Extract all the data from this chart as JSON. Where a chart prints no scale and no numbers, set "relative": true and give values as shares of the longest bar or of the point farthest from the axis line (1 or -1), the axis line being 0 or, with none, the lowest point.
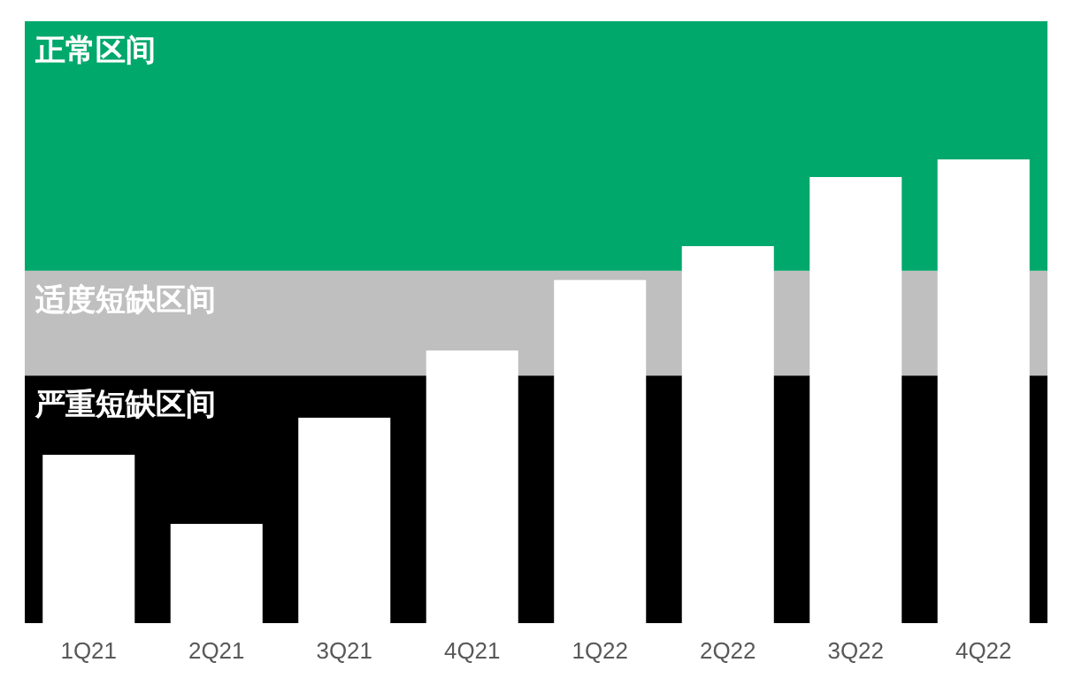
{
  "chart_data": {
    "type": "bar",
    "relative": true,
    "categories": [
      "1Q21",
      "2Q21",
      "3Q21",
      "4Q21",
      "1Q22",
      "2Q22",
      "3Q22",
      "4Q22"
    ],
    "values": [
      0.363,
      0.214,
      0.443,
      0.588,
      0.74,
      0.813,
      0.962,
      1
    ],
    "color": "#ffffff",
    "bands": [
      {
        "axis": "y",
        "from": 0,
        "to": 0.534,
        "label": "严重短缺区间",
        "color": "#000000"
      },
      {
        "axis": "y",
        "from": 0.534,
        "to": 0.76,
        "label": "适度短缺区间",
        "color": "#bfbfbf"
      },
      {
        "axis": "y",
        "from": 0.76,
        "to": 1.298,
        "label": "正常区间",
        "color": "#00a86b"
      }
    ]
  }
}
